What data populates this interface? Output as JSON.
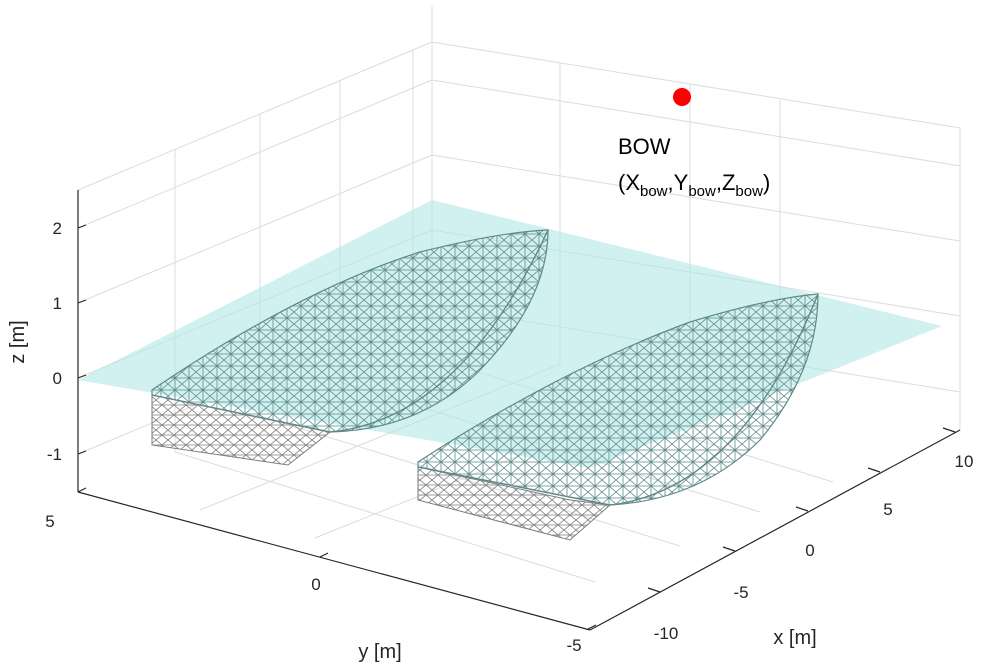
{
  "axes": {
    "x_label": "x [m]",
    "y_label": "y [m]",
    "z_label": "z [m]",
    "x_ticks": [
      "-10",
      "-5",
      "0",
      "5",
      "10"
    ],
    "y_ticks": [
      "5",
      "0",
      "-5"
    ],
    "z_ticks": [
      "2",
      "1",
      "0",
      "-1"
    ]
  },
  "annotation": {
    "line1": "BOW",
    "open": "(X",
    "sub1": "bow",
    "mid1": ",Y",
    "sub2": "bow",
    "mid2": ",Z",
    "sub3": "bow",
    "close": ")"
  },
  "colors": {
    "water_plane": "#b2e8e8",
    "hull_above": "#5f8a8a",
    "hull_below": "#7d7d7d",
    "bow_marker": "#ff0000",
    "grid": "#dcdcdc",
    "axis": "#262626"
  },
  "hulls": [
    "left-hull",
    "right-hull"
  ]
}
